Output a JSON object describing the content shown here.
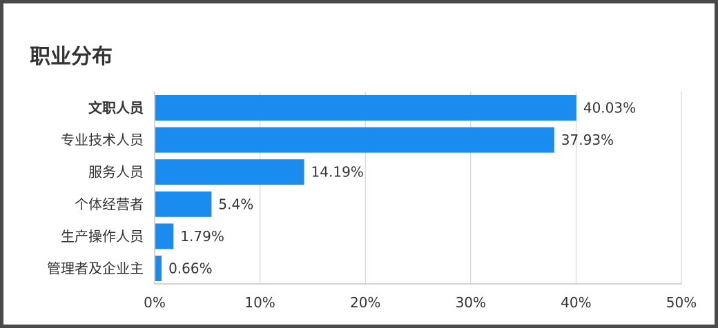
{
  "chart_data": {
    "type": "bar",
    "orientation": "horizontal",
    "title": "职业分布",
    "categories": [
      "文职人员",
      "专业技术人员",
      "服务人员",
      "个体经营者",
      "生产操作人员",
      "管理者及企业主"
    ],
    "values": [
      40.03,
      37.93,
      14.19,
      5.4,
      1.79,
      0.66
    ],
    "value_labels": [
      "40.03%",
      "37.93%",
      "14.19%",
      "5.4%",
      "1.79%",
      "0.66%"
    ],
    "xlim": [
      0,
      50
    ],
    "x_ticks": [
      0,
      10,
      20,
      30,
      40,
      50
    ],
    "x_tick_labels": [
      "0%",
      "10%",
      "20%",
      "30%",
      "40%",
      "50%"
    ],
    "xlabel": "",
    "ylabel": "",
    "grid": true,
    "bar_color": "#1a8cf0",
    "grid_color": "#cccccc",
    "axis_color": "#aaaaaa"
  }
}
